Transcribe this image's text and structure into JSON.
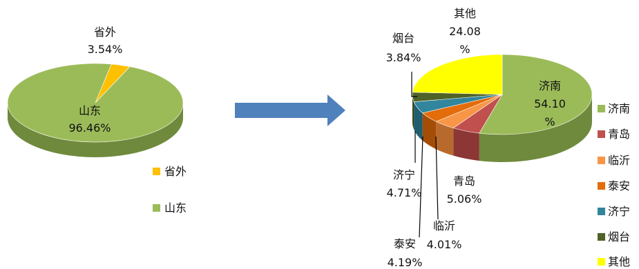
{
  "arrow_color": "#4f81bd",
  "chart_data": [
    {
      "type": "pie",
      "title": "",
      "slices": [
        {
          "name": "省外",
          "value": 3.54,
          "label_pct": "3.54%",
          "color": "#ffc000",
          "side": "#c89600"
        },
        {
          "name": "山东",
          "value": 96.46,
          "label_pct": "96.46%",
          "color": "#9bbb59",
          "side": "#6f8a3c"
        }
      ],
      "legend": {
        "placement": "bottom-right",
        "items": [
          "省外",
          "山东"
        ]
      }
    },
    {
      "type": "pie",
      "title": "",
      "slices": [
        {
          "name": "济南",
          "value": 54.1,
          "label_pct": [
            "54.10",
            "%"
          ],
          "color": "#9bbb59",
          "side": "#6f8a3c"
        },
        {
          "name": "青岛",
          "value": 5.06,
          "label_pct": [
            "5.06%"
          ],
          "color": "#c0504d",
          "side": "#8c3735"
        },
        {
          "name": "临沂",
          "value": 4.01,
          "label_pct": [
            "4.01%"
          ],
          "color": "#f79646",
          "side": "#b86a2c"
        },
        {
          "name": "泰安",
          "value": 4.19,
          "label_pct": [
            "4.19%"
          ],
          "color": "#e46c0a",
          "side": "#a44d07"
        },
        {
          "name": "济宁",
          "value": 4.71,
          "label_pct": [
            "4.71%"
          ],
          "color": "#31859c",
          "side": "#205d6e"
        },
        {
          "name": "烟台",
          "value": 3.84,
          "label_pct": [
            "3.84%"
          ],
          "color": "#4f6228",
          "side": "#35431a"
        },
        {
          "name": "其他",
          "value": 24.08,
          "label_pct": [
            "24.08",
            "%"
          ],
          "color": "#ffff00",
          "side": "#c8c800"
        }
      ],
      "legend": {
        "placement": "right",
        "items": [
          "济南",
          "青岛",
          "临沂",
          "泰安",
          "济宁",
          "烟台",
          "其他"
        ]
      }
    }
  ]
}
